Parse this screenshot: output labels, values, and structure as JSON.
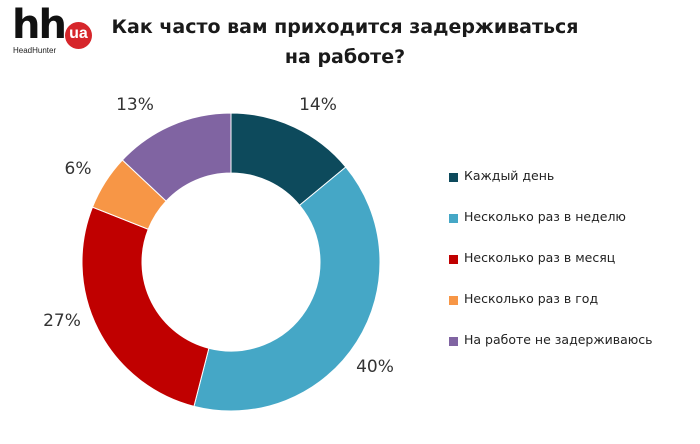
{
  "logo": {
    "main": "hh",
    "badge": "ua",
    "subtitle": "HeadHunter"
  },
  "title": "Как часто вам приходится задерживаться на работе?",
  "chart_data": {
    "type": "pie",
    "variant": "donut",
    "title": "Как часто вам приходится задерживаться на работе?",
    "categories": [
      "Каждый день",
      "Несколько раз в неделю",
      "Несколько раз в месяц",
      "Несколько раз в год",
      "На работе не задерживаюсь"
    ],
    "values": [
      14,
      40,
      27,
      6,
      13
    ],
    "labels": [
      "14%",
      "40%",
      "27%",
      "6%",
      "13%"
    ],
    "colors": [
      "#0d4a5c",
      "#45a7c6",
      "#c00000",
      "#f79646",
      "#8064a2"
    ],
    "unit": "%",
    "legend_position": "right"
  },
  "legend": [
    {
      "label": "Каждый день",
      "color": "#0d4a5c"
    },
    {
      "label": "Несколько раз в неделю",
      "color": "#45a7c6"
    },
    {
      "label": "Несколько раз в месяц",
      "color": "#c00000"
    },
    {
      "label": "Несколько раз в год",
      "color": "#f79646"
    },
    {
      "label": "На работе не задерживаюсь",
      "color": "#8064a2"
    }
  ]
}
